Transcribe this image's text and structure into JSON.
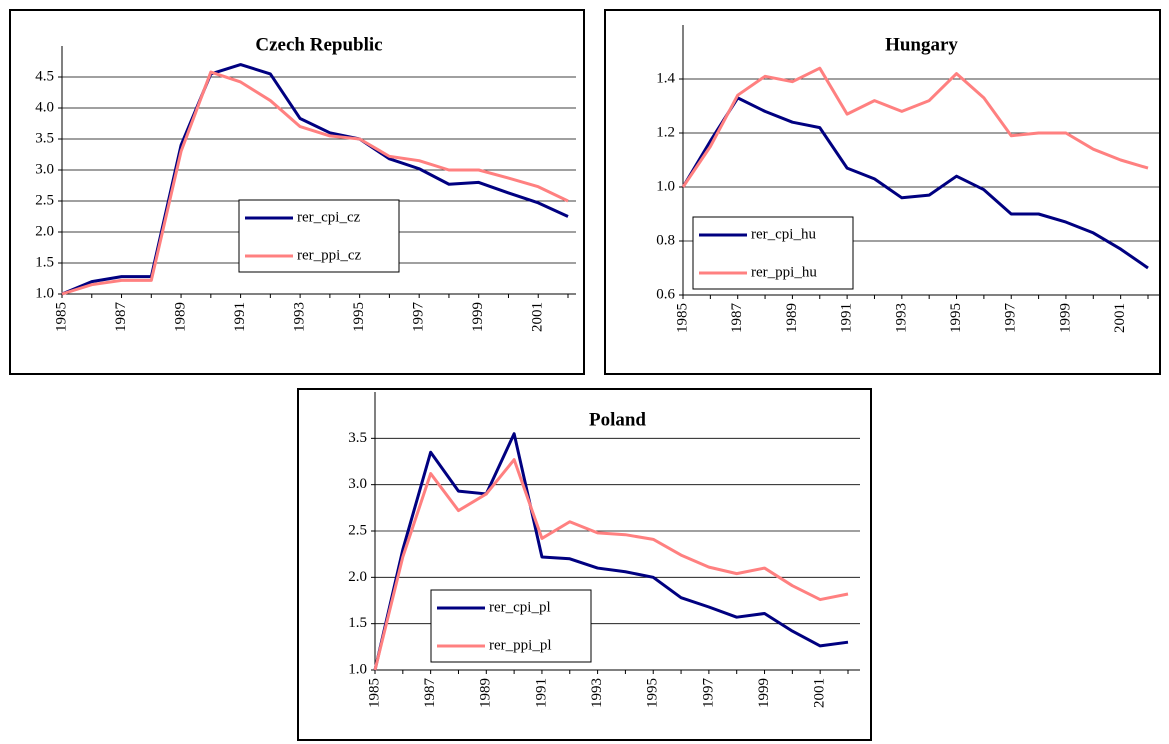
{
  "chart_data": [
    {
      "type": "line",
      "title": "Czech Republic",
      "categories": [
        "1985",
        null,
        "1987",
        null,
        "1989",
        null,
        "1991",
        null,
        "1993",
        null,
        "1995",
        null,
        "1997",
        null,
        "1999",
        null,
        "2001",
        null
      ],
      "series": [
        {
          "name": "rer_cpi_cz",
          "color": "#000080",
          "values": [
            1.0,
            1.2,
            1.28,
            1.28,
            3.4,
            4.55,
            4.7,
            4.55,
            3.83,
            3.6,
            3.5,
            3.18,
            3.02,
            2.77,
            2.8,
            2.63,
            2.47,
            2.25
          ]
        },
        {
          "name": "rer_ppi_cz",
          "color": "#ff8080",
          "values": [
            1.0,
            1.15,
            1.22,
            1.22,
            3.3,
            4.58,
            4.42,
            4.12,
            3.7,
            3.55,
            3.5,
            3.22,
            3.15,
            3.0,
            3.0,
            2.87,
            2.73,
            2.5
          ]
        }
      ],
      "ylim": [
        1.0,
        5.0
      ],
      "yticks": [
        {
          "value": 1.0,
          "label": "1.0"
        },
        1.5,
        {
          "value": 2.0,
          "label": "2.0"
        },
        2.5,
        {
          "value": 3.0,
          "label": "3.0"
        },
        3.5,
        {
          "value": 4.0,
          "label": "4.0"
        },
        4.5
      ],
      "grid": true,
      "legend": "lower center"
    },
    {
      "type": "line",
      "title": "Hungary",
      "categories": [
        "1985",
        null,
        "1987",
        null,
        "1989",
        null,
        "1991",
        null,
        "1993",
        null,
        "1995",
        null,
        "1997",
        null,
        "1999",
        null,
        "2001",
        null
      ],
      "series": [
        {
          "name": "rer_cpi_hu",
          "color": "#000080",
          "values": [
            1.0,
            1.17,
            1.33,
            1.28,
            1.24,
            1.22,
            1.07,
            1.03,
            0.96,
            0.97,
            1.04,
            0.99,
            0.9,
            0.9,
            0.87,
            0.83,
            0.77,
            0.7
          ]
        },
        {
          "name": "rer_ppi_hu",
          "color": "#ff8080",
          "values": [
            1.0,
            1.15,
            1.34,
            1.41,
            1.39,
            1.44,
            1.27,
            1.32,
            1.28,
            1.32,
            1.42,
            1.33,
            1.19,
            1.2,
            1.2,
            1.14,
            1.1,
            1.07
          ]
        }
      ],
      "ylim": [
        0.6,
        1.6
      ],
      "yticks": [
        0.6,
        0.8,
        {
          "value": 1.0,
          "label": "1.0"
        },
        1.2,
        1.4
      ],
      "grid": true,
      "legend": "lower left"
    },
    {
      "type": "line",
      "title": "Poland",
      "categories": [
        "1985",
        null,
        "1987",
        null,
        "1989",
        null,
        "1991",
        null,
        "1993",
        null,
        "1995",
        null,
        "1997",
        null,
        "1999",
        null,
        "2001",
        null
      ],
      "series": [
        {
          "name": "rer_cpi_pl",
          "color": "#000080",
          "values": [
            1.0,
            2.3,
            3.35,
            2.93,
            2.9,
            3.55,
            2.22,
            2.2,
            2.1,
            2.06,
            2.0,
            1.78,
            1.68,
            1.57,
            1.61,
            1.42,
            1.26,
            1.3
          ]
        },
        {
          "name": "rer_ppi_pl",
          "color": "#ff8080",
          "values": [
            1.0,
            2.22,
            3.12,
            2.72,
            2.9,
            3.27,
            2.42,
            2.6,
            2.48,
            2.46,
            2.41,
            2.24,
            2.11,
            2.04,
            2.1,
            1.91,
            1.76,
            1.82
          ]
        }
      ],
      "ylim": [
        1.0,
        4.0
      ],
      "yticks": [
        {
          "value": 1.0,
          "label": "1.0"
        },
        1.5,
        {
          "value": 2.0,
          "label": "2.0"
        },
        2.5,
        {
          "value": 3.0,
          "label": "3.0"
        },
        3.5
      ],
      "grid": true,
      "legend": "lower left"
    }
  ]
}
